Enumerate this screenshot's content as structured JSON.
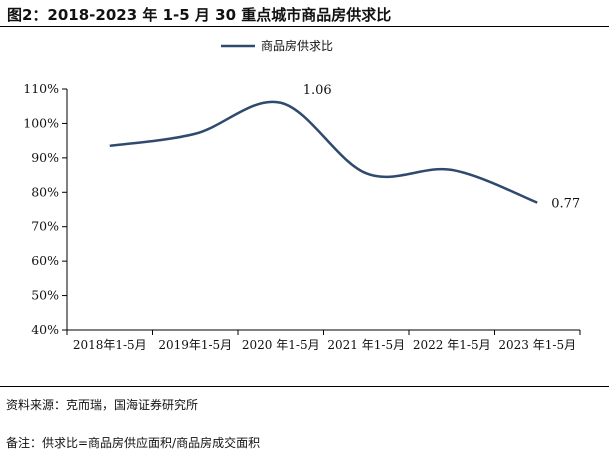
{
  "title": "图2：2018-2023 年 1-5 月 30 重点城市商品房供求比",
  "source": "资料来源：克而瑞，国海证券研究所",
  "note": "备注：供求比=商品房供应面积/商品房成交面积",
  "chart_data": {
    "type": "line",
    "categories": [
      "2018年1-5月",
      "2019年1-5月",
      "2020 年1-5月",
      "2021 年1-5月",
      "2022 年1-5月",
      "2023 年1-5月"
    ],
    "series": [
      {
        "name": "商品房供求比",
        "values": [
          0.935,
          0.97,
          1.06,
          0.855,
          0.865,
          0.77
        ],
        "color": "#2f4a6d"
      }
    ],
    "annotations": [
      {
        "index": 2,
        "text": "1.06"
      },
      {
        "index": 5,
        "text": "0.77"
      }
    ],
    "ylim": [
      0.4,
      1.1
    ],
    "yticks": [
      "40%",
      "50%",
      "60%",
      "70%",
      "80%",
      "90%",
      "100%",
      "110%"
    ],
    "legend": "top-center",
    "grid": false
  }
}
